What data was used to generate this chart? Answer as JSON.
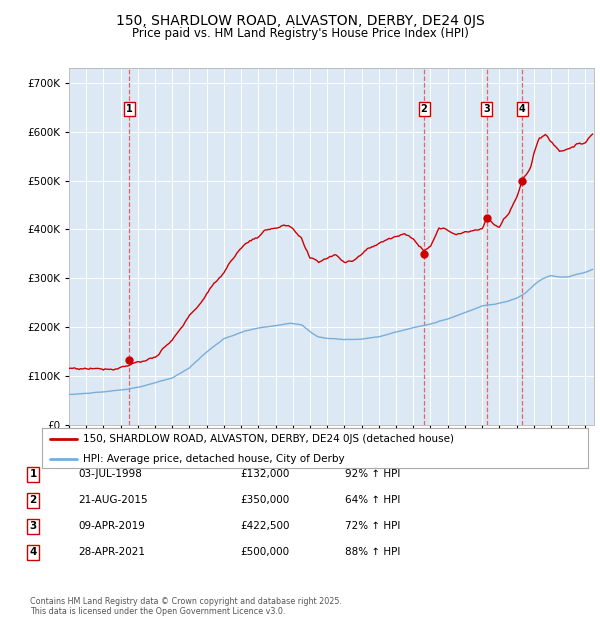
{
  "title": "150, SHARDLOW ROAD, ALVASTON, DERBY, DE24 0JS",
  "subtitle": "Price paid vs. HM Land Registry's House Price Index (HPI)",
  "legend_line1": "150, SHARDLOW ROAD, ALVASTON, DERBY, DE24 0JS (detached house)",
  "legend_line2": "HPI: Average price, detached house, City of Derby",
  "footer1": "Contains HM Land Registry data © Crown copyright and database right 2025.",
  "footer2": "This data is licensed under the Open Government Licence v3.0.",
  "plot_bg_color": "#dce9f5",
  "sale_points": [
    {
      "label": "1",
      "date": "03-JUL-1998",
      "price": 132000,
      "pct": "92%",
      "x_year": 1998.5
    },
    {
      "label": "2",
      "date": "21-AUG-2015",
      "price": 350000,
      "pct": "64%",
      "x_year": 2015.63
    },
    {
      "label": "3",
      "date": "09-APR-2019",
      "price": 422500,
      "pct": "72%",
      "x_year": 2019.27
    },
    {
      "label": "4",
      "date": "28-APR-2021",
      "price": 500000,
      "pct": "88%",
      "x_year": 2021.32
    }
  ],
  "ylim": [
    0,
    730000
  ],
  "xlim_start": 1995,
  "xlim_end": 2025.5,
  "red_color": "#cc0000",
  "blue_color": "#7aaed6",
  "dashed_color": "#e05050",
  "grid_color": "#ffffff",
  "red_anchors_x": [
    1995.0,
    1996.0,
    1997.0,
    1997.5,
    1998.0,
    1998.5,
    1999.0,
    2000.0,
    2001.0,
    2002.0,
    2003.0,
    2004.0,
    2004.5,
    2005.0,
    2005.5,
    2006.0,
    2006.5,
    2007.0,
    2007.5,
    2008.0,
    2008.5,
    2009.0,
    2009.5,
    2010.0,
    2010.5,
    2011.0,
    2011.5,
    2012.0,
    2012.5,
    2013.0,
    2013.5,
    2014.0,
    2014.5,
    2015.0,
    2015.63,
    2016.0,
    2016.5,
    2017.0,
    2017.5,
    2018.0,
    2018.5,
    2019.0,
    2019.27,
    2019.5,
    2020.0,
    2020.5,
    2021.0,
    2021.32,
    2021.8,
    2022.0,
    2022.3,
    2022.7,
    2023.0,
    2023.5,
    2024.0,
    2024.5,
    2025.0,
    2025.4
  ],
  "red_anchors_y": [
    115000,
    115000,
    118000,
    120000,
    125000,
    132000,
    138000,
    148000,
    175000,
    220000,
    265000,
    310000,
    340000,
    360000,
    375000,
    385000,
    395000,
    403000,
    407000,
    395000,
    370000,
    325000,
    315000,
    325000,
    332000,
    318000,
    325000,
    340000,
    352000,
    360000,
    370000,
    378000,
    378000,
    372000,
    350000,
    365000,
    402000,
    393000,
    388000,
    395000,
    402000,
    405000,
    422500,
    418000,
    402000,
    428000,
    460000,
    500000,
    525000,
    555000,
    585000,
    595000,
    580000,
    562000,
    568000,
    580000,
    575000,
    595000
  ],
  "hpi_anchors_x": [
    1995.0,
    1996.0,
    1997.0,
    1998.0,
    1999.0,
    2000.0,
    2001.0,
    2002.0,
    2003.0,
    2004.0,
    2005.0,
    2006.0,
    2007.0,
    2007.8,
    2008.5,
    2009.0,
    2009.5,
    2010.0,
    2011.0,
    2012.0,
    2013.0,
    2014.0,
    2015.0,
    2016.0,
    2017.0,
    2018.0,
    2019.0,
    2020.0,
    2020.5,
    2021.0,
    2021.5,
    2022.0,
    2022.5,
    2023.0,
    2023.5,
    2024.0,
    2024.5,
    2025.0,
    2025.4
  ],
  "hpi_anchors_y": [
    62000,
    64000,
    67000,
    70000,
    76000,
    85000,
    94000,
    115000,
    148000,
    175000,
    188000,
    195000,
    200000,
    205000,
    202000,
    188000,
    178000,
    175000,
    172000,
    173000,
    178000,
    188000,
    196000,
    205000,
    215000,
    228000,
    242000,
    248000,
    252000,
    258000,
    268000,
    285000,
    298000,
    305000,
    302000,
    302000,
    308000,
    312000,
    318000
  ]
}
